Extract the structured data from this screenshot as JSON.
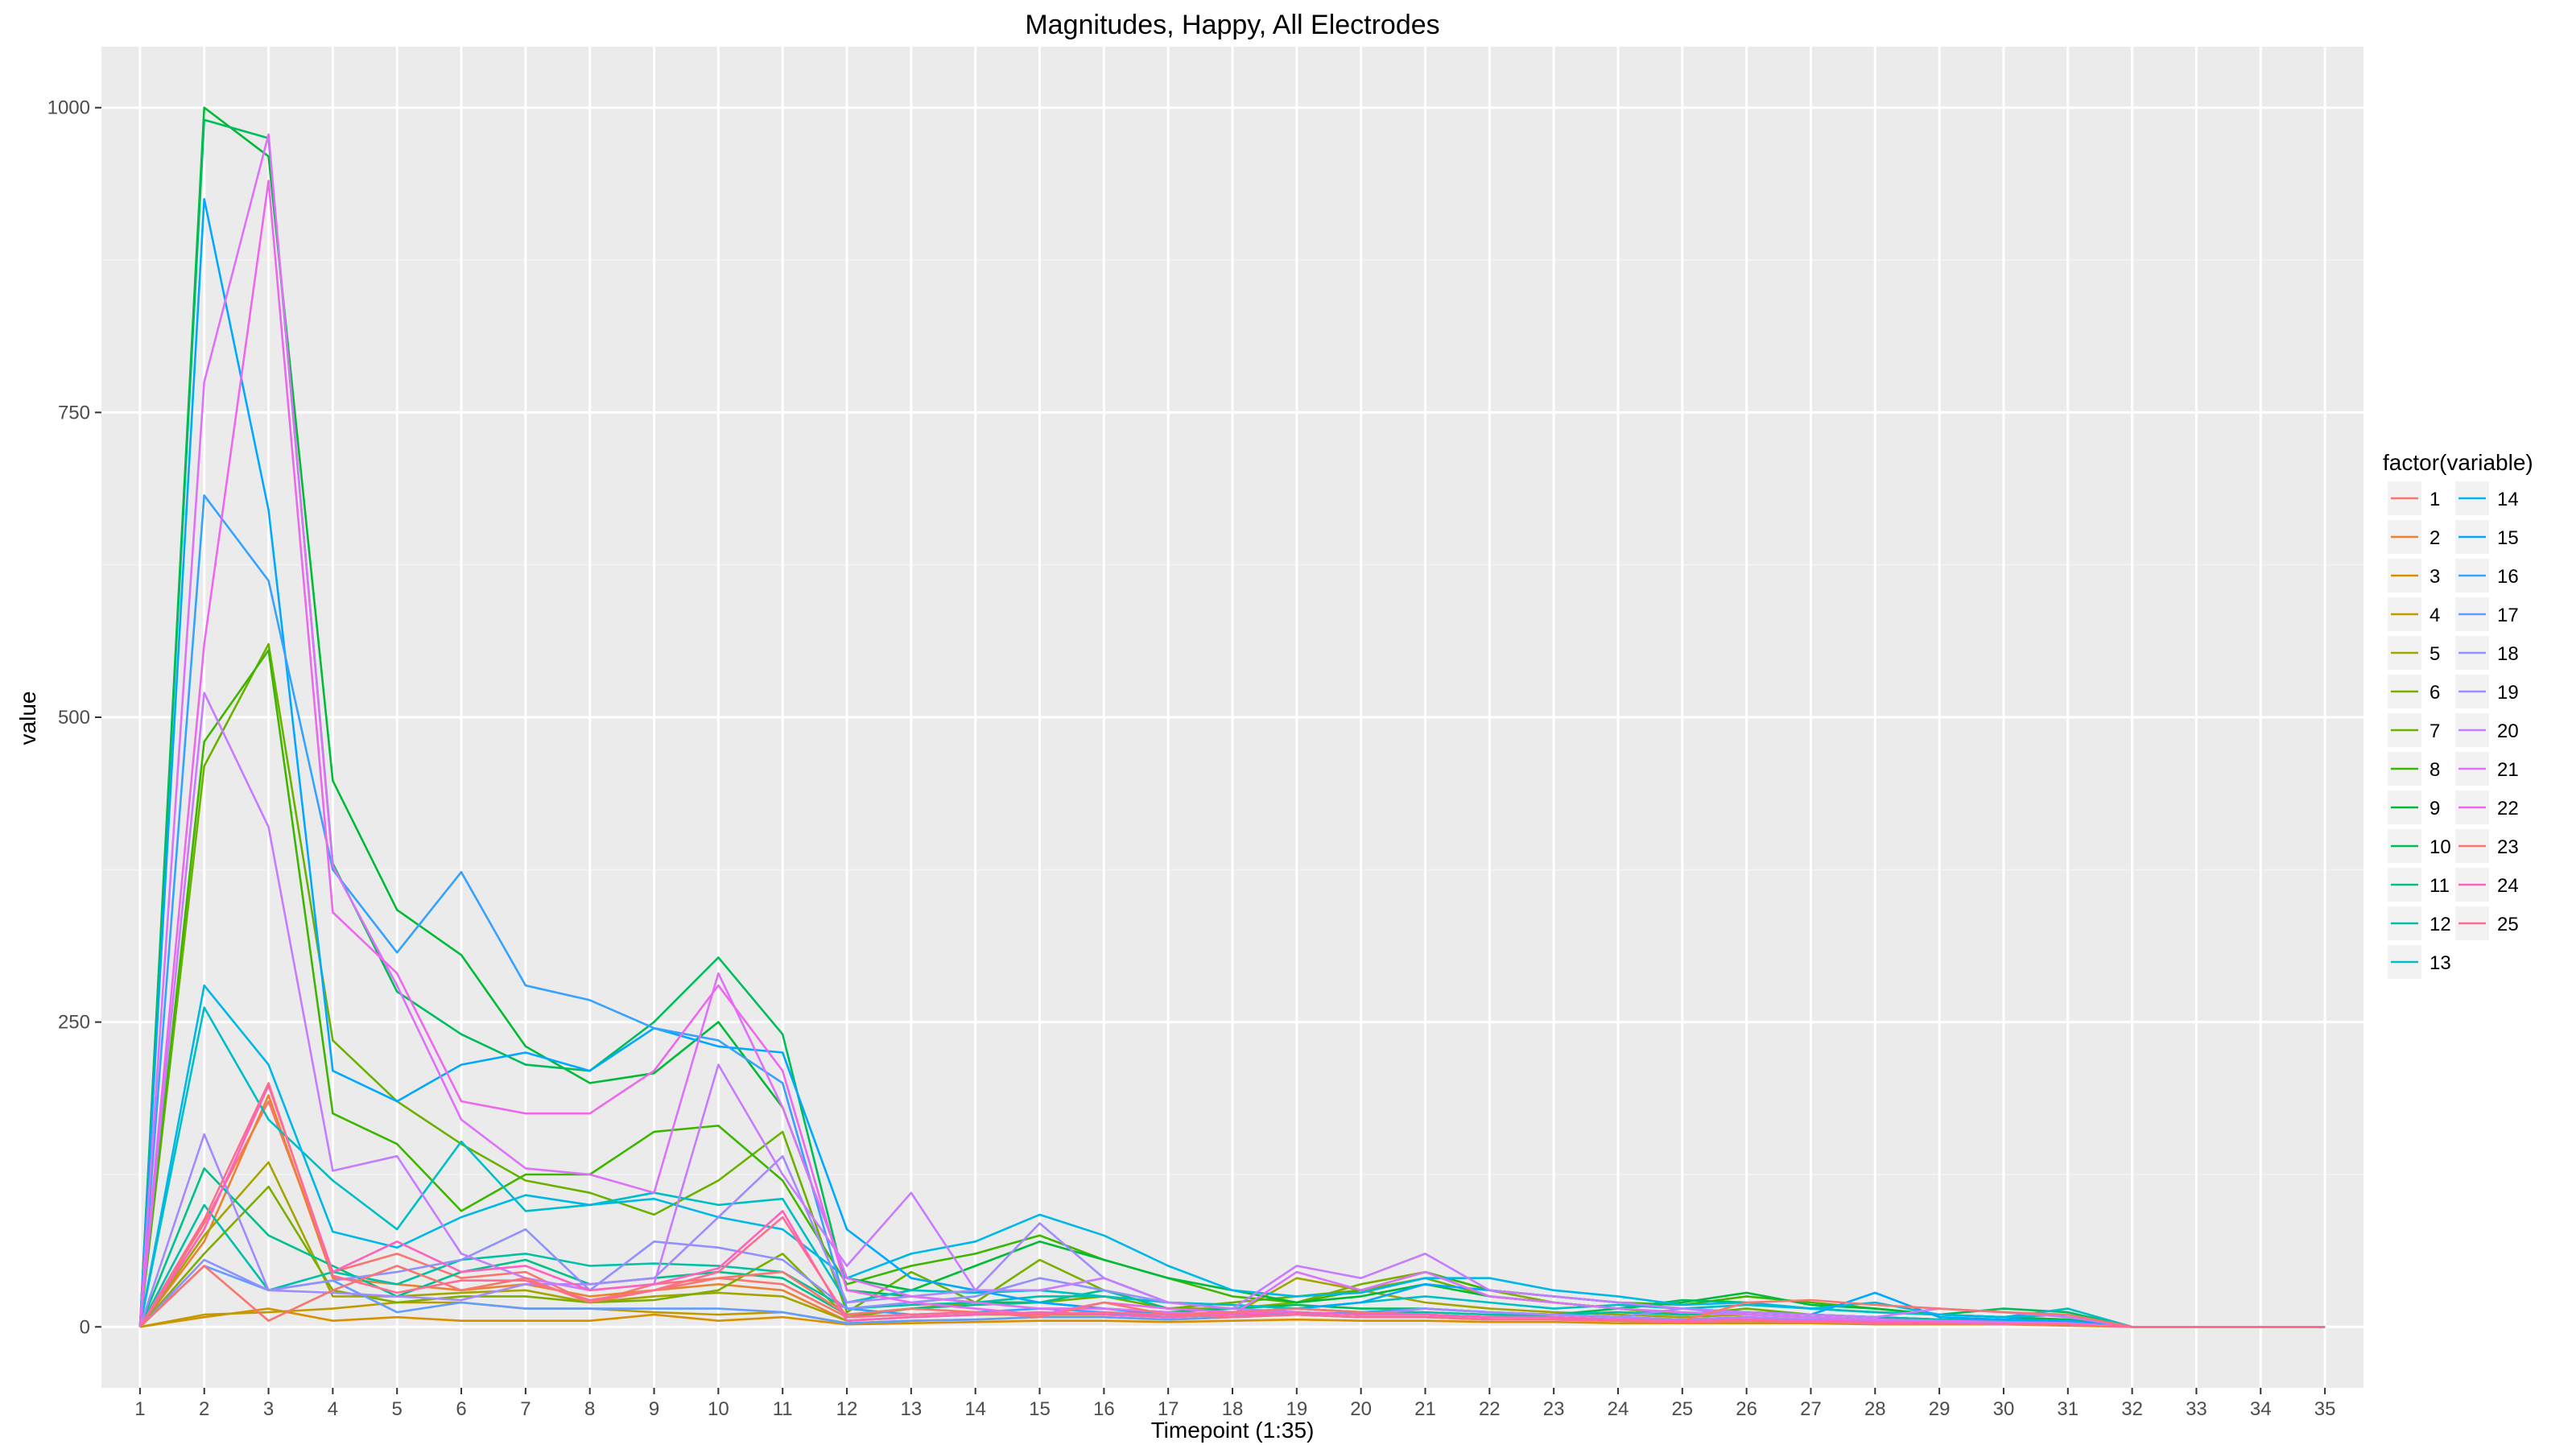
{
  "chart_data": {
    "type": "line",
    "title": "Magnitudes, Happy, All Electrodes",
    "xlabel": "Timepoint (1:35)",
    "ylabel": "value",
    "x": [
      1,
      2,
      3,
      4,
      5,
      6,
      7,
      8,
      9,
      10,
      11,
      12,
      13,
      14,
      15,
      16,
      17,
      18,
      19,
      20,
      21,
      22,
      23,
      24,
      25,
      26,
      27,
      28,
      29,
      30,
      31,
      32,
      33,
      34,
      35
    ],
    "xlim": [
      0.4,
      35.6
    ],
    "ylim": [
      -50,
      1050
    ],
    "yticks": [
      0,
      250,
      500,
      750,
      1000
    ],
    "grid": true,
    "legend": {
      "title": "factor(variable)",
      "placement": "right",
      "columns": 2
    },
    "series": [
      {
        "name": "1",
        "color": "#F8766D",
        "values": [
          0,
          85,
          185,
          45,
          60,
          40,
          45,
          20,
          35,
          40,
          35,
          8,
          10,
          12,
          15,
          15,
          10,
          12,
          15,
          12,
          10,
          8,
          10,
          8,
          6,
          8,
          6,
          5,
          4,
          3,
          2,
          0,
          0,
          0,
          0
        ]
      },
      {
        "name": "2",
        "color": "#EA8331",
        "values": [
          0,
          70,
          190,
          40,
          35,
          30,
          35,
          25,
          30,
          35,
          30,
          5,
          8,
          10,
          12,
          10,
          8,
          10,
          12,
          10,
          10,
          8,
          8,
          6,
          5,
          6,
          5,
          4,
          4,
          3,
          2,
          0,
          0,
          0,
          0
        ]
      },
      {
        "name": "3",
        "color": "#D89000",
        "values": [
          0,
          8,
          15,
          5,
          8,
          5,
          5,
          5,
          10,
          5,
          8,
          2,
          3,
          4,
          5,
          5,
          4,
          5,
          6,
          5,
          5,
          4,
          4,
          3,
          3,
          3,
          3,
          2,
          2,
          2,
          1,
          0,
          0,
          0,
          0
        ]
      },
      {
        "name": "4",
        "color": "#C09B00",
        "values": [
          0,
          10,
          12,
          15,
          20,
          20,
          15,
          15,
          12,
          10,
          12,
          3,
          5,
          6,
          8,
          8,
          6,
          8,
          10,
          8,
          8,
          6,
          6,
          5,
          4,
          5,
          4,
          3,
          3,
          2,
          2,
          0,
          0,
          0,
          0
        ]
      },
      {
        "name": "5",
        "color": "#A3A500",
        "values": [
          0,
          75,
          135,
          25,
          25,
          28,
          30,
          20,
          25,
          28,
          25,
          5,
          8,
          10,
          10,
          10,
          8,
          10,
          40,
          30,
          20,
          15,
          12,
          10,
          8,
          10,
          8,
          6,
          5,
          4,
          3,
          0,
          0,
          0,
          0
        ]
      },
      {
        "name": "6",
        "color": "#7CAE00",
        "values": [
          0,
          60,
          115,
          30,
          20,
          25,
          25,
          20,
          22,
          30,
          60,
          8,
          15,
          20,
          55,
          30,
          15,
          15,
          20,
          35,
          45,
          30,
          20,
          15,
          10,
          12,
          10,
          8,
          6,
          5,
          4,
          0,
          0,
          0,
          0
        ]
      },
      {
        "name": "7",
        "color": "#6BB100",
        "values": [
          0,
          460,
          560,
          235,
          185,
          150,
          120,
          110,
          92,
          120,
          160,
          12,
          45,
          20,
          20,
          25,
          15,
          20,
          25,
          30,
          40,
          25,
          20,
          15,
          10,
          15,
          10,
          8,
          6,
          5,
          4,
          0,
          0,
          0,
          0
        ]
      },
      {
        "name": "8",
        "color": "#3DB600",
        "values": [
          0,
          480,
          555,
          175,
          150,
          95,
          125,
          125,
          160,
          165,
          120,
          35,
          50,
          60,
          75,
          55,
          40,
          25,
          20,
          30,
          45,
          30,
          25,
          20,
          18,
          25,
          20,
          15,
          10,
          8,
          6,
          0,
          0,
          0,
          0
        ]
      },
      {
        "name": "9",
        "color": "#00BA38",
        "values": [
          0,
          1000,
          960,
          448,
          342,
          305,
          230,
          200,
          208,
          250,
          180,
          40,
          30,
          50,
          70,
          55,
          40,
          30,
          20,
          25,
          35,
          25,
          20,
          15,
          20,
          28,
          18,
          15,
          10,
          8,
          6,
          0,
          0,
          0,
          0
        ]
      },
      {
        "name": "10",
        "color": "#00BD5C",
        "values": [
          0,
          990,
          975,
          380,
          275,
          240,
          215,
          210,
          250,
          303,
          240,
          30,
          25,
          20,
          20,
          15,
          12,
          15,
          18,
          15,
          15,
          12,
          10,
          15,
          22,
          20,
          15,
          12,
          10,
          15,
          12,
          0,
          0,
          0,
          0
        ]
      },
      {
        "name": "11",
        "color": "#00C08B",
        "values": [
          0,
          130,
          75,
          50,
          25,
          45,
          55,
          35,
          40,
          45,
          40,
          10,
          15,
          18,
          20,
          30,
          15,
          12,
          12,
          10,
          10,
          8,
          10,
          12,
          10,
          12,
          10,
          8,
          6,
          5,
          4,
          0,
          0,
          0,
          0
        ]
      },
      {
        "name": "12",
        "color": "#00C1A7",
        "values": [
          0,
          100,
          30,
          45,
          35,
          55,
          60,
          50,
          52,
          50,
          45,
          15,
          18,
          20,
          25,
          25,
          20,
          18,
          15,
          12,
          12,
          10,
          10,
          12,
          10,
          12,
          10,
          8,
          6,
          5,
          4,
          0,
          0,
          0,
          0
        ]
      },
      {
        "name": "13",
        "color": "#00BFC4",
        "values": [
          0,
          262,
          170,
          120,
          80,
          152,
          95,
          100,
          110,
          100,
          105,
          20,
          30,
          28,
          30,
          25,
          20,
          18,
          15,
          20,
          25,
          20,
          15,
          18,
          15,
          18,
          15,
          12,
          10,
          8,
          15,
          0,
          0,
          0,
          0
        ]
      },
      {
        "name": "14",
        "color": "#00B8E7",
        "values": [
          0,
          280,
          215,
          78,
          65,
          90,
          108,
          100,
          105,
          90,
          80,
          40,
          60,
          70,
          92,
          75,
          50,
          30,
          25,
          28,
          40,
          40,
          30,
          25,
          18,
          20,
          15,
          20,
          10,
          8,
          10,
          0,
          0,
          0,
          0
        ]
      },
      {
        "name": "15",
        "color": "#00A9FF",
        "values": [
          0,
          925,
          670,
          210,
          185,
          215,
          225,
          210,
          245,
          230,
          225,
          80,
          40,
          30,
          20,
          15,
          10,
          12,
          15,
          20,
          35,
          30,
          25,
          20,
          15,
          12,
          10,
          28,
          8,
          6,
          5,
          0,
          0,
          0,
          0
        ]
      },
      {
        "name": "16",
        "color": "#35A2FF",
        "values": [
          0,
          682,
          612,
          375,
          307,
          373,
          280,
          268,
          245,
          235,
          200,
          15,
          10,
          12,
          15,
          12,
          8,
          10,
          10,
          12,
          15,
          12,
          10,
          8,
          6,
          8,
          6,
          5,
          4,
          3,
          2,
          0,
          0,
          0,
          0
        ]
      },
      {
        "name": "17",
        "color": "#619CFF",
        "values": [
          0,
          50,
          30,
          38,
          12,
          20,
          15,
          15,
          15,
          15,
          12,
          3,
          5,
          6,
          8,
          8,
          6,
          8,
          10,
          8,
          8,
          6,
          6,
          5,
          4,
          5,
          4,
          3,
          3,
          2,
          2,
          0,
          0,
          0,
          0
        ]
      },
      {
        "name": "18",
        "color": "#8F91FF",
        "values": [
          0,
          55,
          30,
          38,
          45,
          55,
          80,
          30,
          70,
          65,
          55,
          15,
          20,
          25,
          40,
          30,
          20,
          15,
          12,
          10,
          15,
          12,
          10,
          8,
          15,
          10,
          8,
          6,
          5,
          4,
          3,
          0,
          0,
          0,
          0
        ]
      },
      {
        "name": "19",
        "color": "#A58AFF",
        "values": [
          0,
          158,
          30,
          28,
          25,
          22,
          35,
          35,
          40,
          90,
          140,
          20,
          25,
          30,
          85,
          40,
          20,
          15,
          12,
          10,
          15,
          12,
          10,
          8,
          6,
          8,
          6,
          5,
          4,
          3,
          2,
          0,
          0,
          0,
          0
        ]
      },
      {
        "name": "20",
        "color": "#C77CFF",
        "values": [
          0,
          520,
          410,
          128,
          140,
          60,
          40,
          30,
          35,
          215,
          125,
          50,
          110,
          30,
          30,
          40,
          20,
          15,
          50,
          40,
          60,
          30,
          25,
          20,
          15,
          12,
          10,
          8,
          15,
          12,
          8,
          0,
          0,
          0,
          0
        ]
      },
      {
        "name": "21",
        "color": "#DE71F9",
        "values": [
          0,
          775,
          978,
          378,
          280,
          170,
          130,
          125,
          110,
          290,
          180,
          40,
          25,
          20,
          15,
          15,
          12,
          10,
          45,
          30,
          45,
          25,
          20,
          15,
          12,
          10,
          8,
          6,
          5,
          4,
          3,
          0,
          0,
          0,
          0
        ]
      },
      {
        "name": "22",
        "color": "#ED68ED",
        "values": [
          0,
          560,
          940,
          340,
          290,
          185,
          175,
          175,
          210,
          280,
          210,
          30,
          20,
          15,
          10,
          20,
          15,
          12,
          12,
          10,
          10,
          8,
          8,
          6,
          5,
          6,
          5,
          4,
          3,
          2,
          2,
          0,
          0,
          0,
          0
        ]
      },
      {
        "name": "23",
        "color": "#F8766D",
        "values": [
          0,
          50,
          5,
          30,
          50,
          30,
          40,
          20,
          30,
          40,
          45,
          10,
          15,
          12,
          8,
          20,
          10,
          12,
          15,
          12,
          10,
          8,
          8,
          6,
          5,
          20,
          22,
          18,
          15,
          12,
          10,
          0,
          0,
          0,
          0
        ]
      },
      {
        "name": "24",
        "color": "#FF62BC",
        "values": [
          0,
          80,
          198,
          45,
          70,
          45,
          50,
          30,
          35,
          48,
          95,
          5,
          8,
          10,
          12,
          10,
          8,
          10,
          12,
          10,
          10,
          8,
          8,
          6,
          5,
          6,
          5,
          4,
          3,
          2,
          2,
          0,
          0,
          0,
          0
        ]
      },
      {
        "name": "25",
        "color": "#FF6C91",
        "values": [
          0,
          88,
          200,
          42,
          28,
          38,
          38,
          22,
          30,
          45,
          90,
          8,
          10,
          12,
          10,
          12,
          10,
          8,
          10,
          8,
          8,
          6,
          6,
          5,
          4,
          5,
          4,
          3,
          3,
          2,
          2,
          0,
          0,
          0,
          0
        ]
      }
    ]
  }
}
